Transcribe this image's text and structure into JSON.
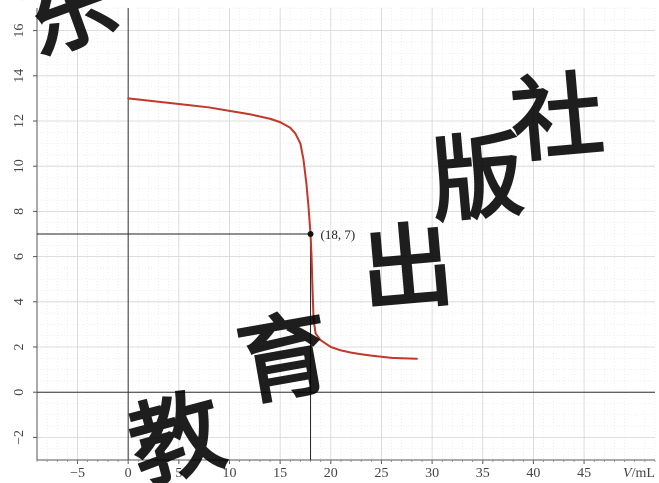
{
  "chart_data": {
    "type": "line",
    "title": "",
    "xlabel": "V/mL",
    "ylabel": "",
    "xlim": [
      -9,
      52
    ],
    "ylim": [
      -3,
      17
    ],
    "x_ticks": [
      -5,
      0,
      5,
      10,
      15,
      20,
      25,
      30,
      35,
      40,
      45
    ],
    "y_ticks": [
      -2,
      0,
      2,
      4,
      6,
      8,
      10,
      12,
      14,
      16
    ],
    "grid": true,
    "legend": "none",
    "series": [
      {
        "color": "#c0392b",
        "points": [
          [
            0,
            13.0
          ],
          [
            2,
            12.9
          ],
          [
            4,
            12.8
          ],
          [
            6,
            12.7
          ],
          [
            8,
            12.6
          ],
          [
            10,
            12.45
          ],
          [
            12,
            12.3
          ],
          [
            14,
            12.1
          ],
          [
            15,
            11.95
          ],
          [
            16,
            11.7
          ],
          [
            16.5,
            11.45
          ],
          [
            17,
            11.0
          ],
          [
            17.3,
            10.3
          ],
          [
            17.6,
            9.2
          ],
          [
            17.8,
            8.2
          ],
          [
            18,
            7.0
          ],
          [
            18.1,
            6.0
          ],
          [
            18.2,
            4.5
          ],
          [
            18.3,
            3.2
          ],
          [
            18.5,
            2.6
          ],
          [
            19,
            2.3
          ],
          [
            20,
            2.0
          ],
          [
            21,
            1.85
          ],
          [
            22,
            1.75
          ],
          [
            23,
            1.68
          ],
          [
            24,
            1.62
          ],
          [
            25,
            1.57
          ],
          [
            26,
            1.52
          ],
          [
            27,
            1.5
          ],
          [
            28.5,
            1.48
          ]
        ]
      }
    ],
    "annotations": [
      {
        "text": "(18, 7)",
        "x": 18,
        "y": 7
      }
    ],
    "watermark": "广东教育出版社"
  }
}
